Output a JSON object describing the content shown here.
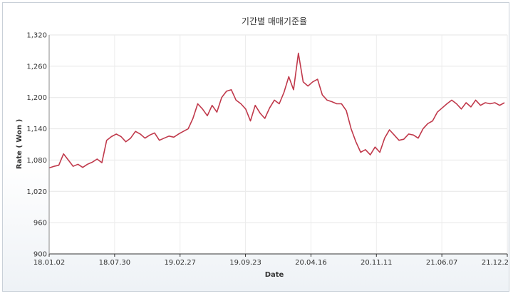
{
  "chart_data": {
    "type": "line",
    "title": "기간별 매매기준율",
    "xlabel": "Date",
    "ylabel": "Rate ( Won )",
    "ylim": [
      900,
      1320
    ],
    "yticks": [
      "900",
      "960",
      "1,020",
      "1,080",
      "1,140",
      "1,200",
      "1,260",
      "1,320"
    ],
    "xticks": [
      "18.01.02",
      "18.07.30",
      "19.02.27",
      "19.09.23",
      "20.04.16",
      "20.11.11",
      "21.06.07",
      "21.12.2"
    ],
    "grid": true,
    "legend": "none",
    "line_color": "#c0394b",
    "series": [
      {
        "x": [
          "18.01.02",
          "18.01.15",
          "18.02.01",
          "18.02.15",
          "18.03.01",
          "18.03.15",
          "18.04.01",
          "18.04.15",
          "18.05.01",
          "18.05.15",
          "18.06.01",
          "18.06.15",
          "18.07.01",
          "18.07.15",
          "18.07.30",
          "18.08.15",
          "18.09.01",
          "18.09.15",
          "18.10.01",
          "18.10.15",
          "18.11.01",
          "18.11.15",
          "18.12.01",
          "18.12.15",
          "19.01.01",
          "19.01.15",
          "19.02.01",
          "19.02.15",
          "19.02.27",
          "19.03.15",
          "19.04.01",
          "19.04.15",
          "19.05.01",
          "19.05.15",
          "19.06.01",
          "19.06.15",
          "19.07.01",
          "19.07.15",
          "19.08.01",
          "19.08.15",
          "19.09.01",
          "19.09.15",
          "19.09.23",
          "19.10.15",
          "19.11.01",
          "19.11.15",
          "19.12.01",
          "19.12.15",
          "20.01.01",
          "20.01.15",
          "20.02.01",
          "20.02.15",
          "20.03.01",
          "20.03.19",
          "20.04.01",
          "20.04.16",
          "20.05.01",
          "20.05.15",
          "20.06.01",
          "20.06.15",
          "20.07.01",
          "20.07.15",
          "20.08.01",
          "20.08.15",
          "20.09.01",
          "20.09.15",
          "20.10.01",
          "20.10.15",
          "20.11.01",
          "20.11.11",
          "20.12.01",
          "20.12.15",
          "21.01.01",
          "21.01.15",
          "21.02.01",
          "21.02.15",
          "21.03.01",
          "21.03.15",
          "21.04.01",
          "21.04.15",
          "21.05.01",
          "21.05.15",
          "21.06.07",
          "21.06.15",
          "21.07.01",
          "21.07.15",
          "21.08.01",
          "21.08.15",
          "21.09.01",
          "21.09.15",
          "21.10.01",
          "21.10.15",
          "21.11.01",
          "21.11.15",
          "21.12.01",
          "21.12.2"
        ],
        "values": [
          1065,
          1068,
          1070,
          1092,
          1080,
          1068,
          1072,
          1066,
          1072,
          1076,
          1082,
          1075,
          1118,
          1125,
          1130,
          1125,
          1115,
          1122,
          1135,
          1130,
          1122,
          1128,
          1132,
          1118,
          1122,
          1126,
          1124,
          1130,
          1135,
          1140,
          1160,
          1188,
          1178,
          1165,
          1185,
          1172,
          1200,
          1212,
          1215,
          1195,
          1188,
          1178,
          1155,
          1185,
          1170,
          1160,
          1180,
          1195,
          1188,
          1210,
          1240,
          1215,
          1285,
          1230,
          1222,
          1230,
          1235,
          1205,
          1195,
          1192,
          1188,
          1188,
          1175,
          1140,
          1115,
          1095,
          1100,
          1090,
          1105,
          1095,
          1122,
          1138,
          1128,
          1118,
          1120,
          1130,
          1128,
          1122,
          1140,
          1150,
          1155,
          1172,
          1180,
          1188,
          1195,
          1188,
          1178,
          1190,
          1182,
          1195,
          1185,
          1190,
          1188,
          1190,
          1185,
          1190
        ]
      }
    ]
  }
}
